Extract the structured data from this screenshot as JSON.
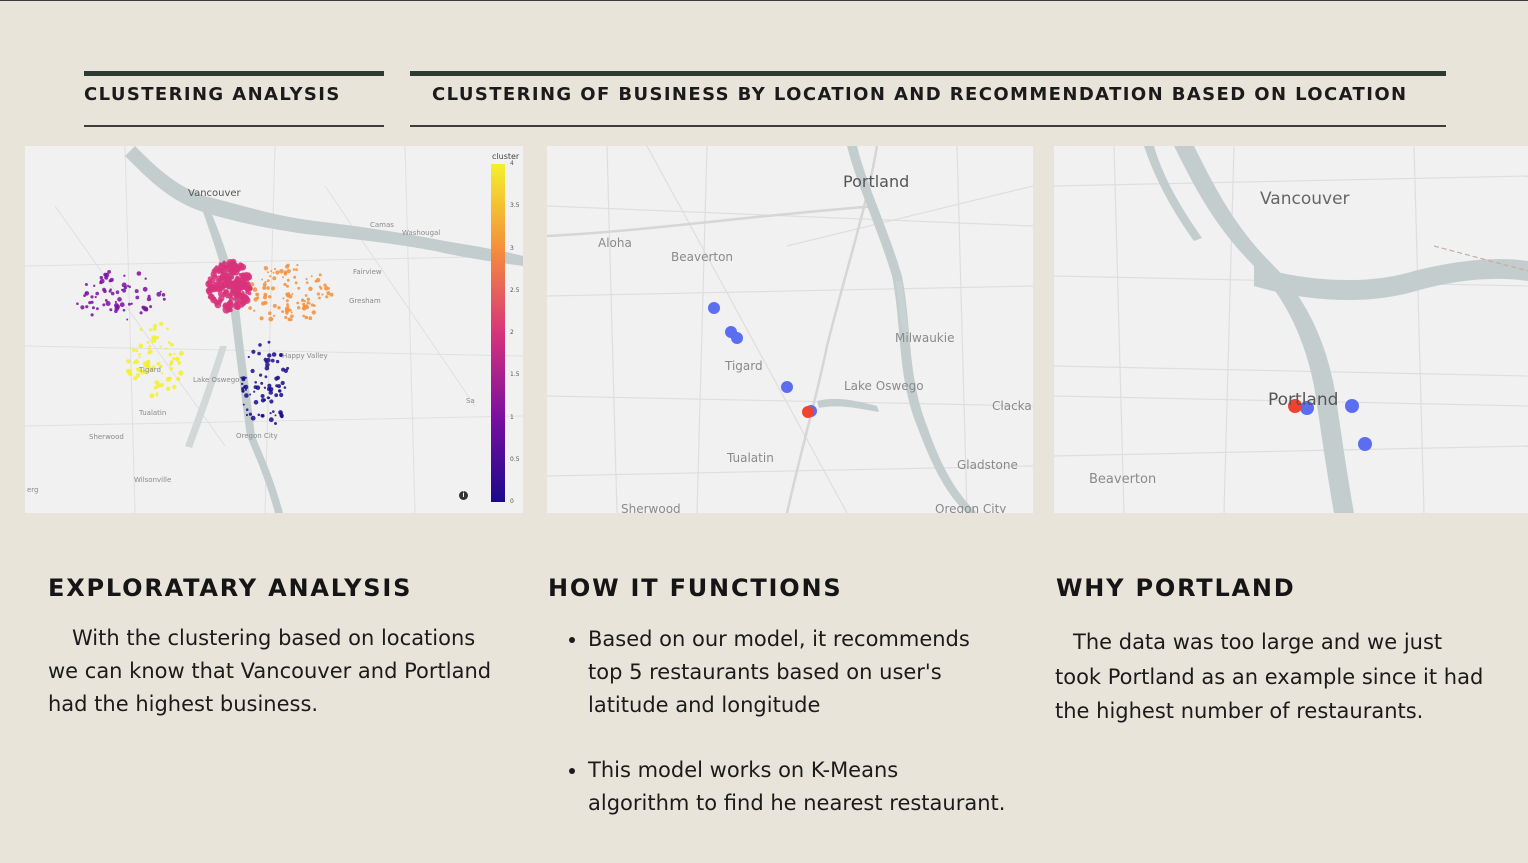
{
  "headers": {
    "left": "CLUSTERING ANALYSIS",
    "right": "CLUSTERING OF BUSINESS BY LOCATION AND RECOMMENDATION BASED ON LOCATION"
  },
  "map1": {
    "colorbar_title": "cluster",
    "colorbar_ticks": [
      "4",
      "3.5",
      "3",
      "2.5",
      "2",
      "1.5",
      "1",
      "0.5",
      "0"
    ],
    "labels": {
      "vancouver": "Vancouver",
      "camas": "Camas",
      "washougal": "Washougal",
      "fairview": "Fairview",
      "gresham": "Gresham",
      "happy_valley": "Happy Valley",
      "tigard": "Tigard",
      "lake_oswego": "Lake Oswego",
      "tualatin": "Tualatin",
      "sherwood": "Sherwood",
      "oregon_city": "Oregon City",
      "wilsonville": "Wilsonville",
      "sa": "Sa",
      "erg": "erg"
    },
    "info_icon": "info-icon",
    "cluster_colors": [
      "#1a0a8c",
      "#7a0fa0",
      "#d8337a",
      "#f58f3a",
      "#f3f02a"
    ]
  },
  "map2": {
    "labels": {
      "portland": "Portland",
      "aloha": "Aloha",
      "beaverton": "Beaverton",
      "milwaukie": "Milwaukie",
      "tigard": "Tigard",
      "lake_oswego": "Lake Oswego",
      "clacka": "Clacka",
      "tualatin": "Tualatin",
      "gladstone": "Gladstone",
      "sherwood": "Sherwood",
      "oregon_city": "Oregon City"
    },
    "point_colors": {
      "recommended": "#5b6ef2",
      "user": "#f2412f"
    }
  },
  "map3": {
    "labels": {
      "vancouver": "Vancouver",
      "portland": "Portland",
      "beaverton": "Beaverton"
    },
    "point_colors": {
      "recommended": "#5b6ef2",
      "user": "#f2412f"
    }
  },
  "sections": {
    "exploratory": {
      "title": "EXPLORATARY ANALYSIS",
      "lines": [
        "With the clustering based on locations",
        "we can know that Vancouver and Portland",
        "had the highest business."
      ]
    },
    "how": {
      "title": "HOW IT FUNCTIONS",
      "bullets": [
        [
          "Based on our model, it recommends",
          "top 5 restaurants based on user's",
          "latitude and longitude"
        ],
        [
          "This model works on K-Means",
          "algorithm to find he nearest restaurant."
        ]
      ]
    },
    "why": {
      "title": "WHY PORTLAND",
      "lines": [
        "The data was too large and we just",
        "took Portland as an example since it had",
        "the highest number of restaurants."
      ]
    }
  }
}
